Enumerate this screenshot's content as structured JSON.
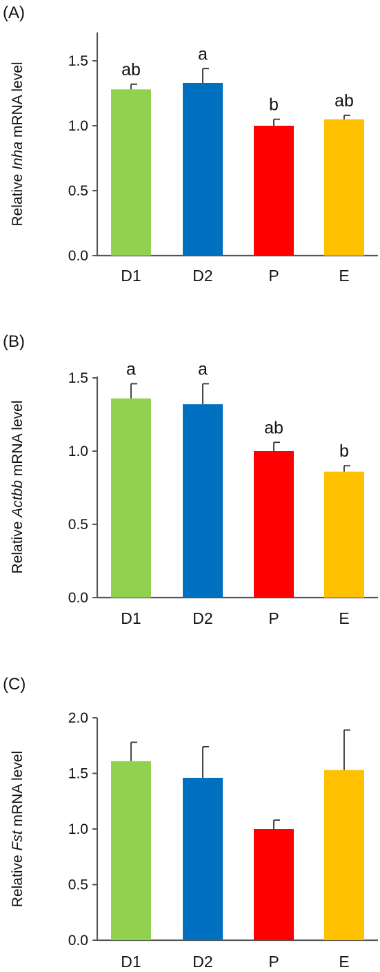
{
  "chart_data": [
    {
      "type": "bar",
      "panel_label": "(A)",
      "ylabel": {
        "prefix": "Relative ",
        "gene": "Inha",
        "suffix": " mRNA level"
      },
      "categories": [
        "D1",
        "D2",
        "P",
        "E"
      ],
      "values": [
        1.28,
        1.33,
        1.0,
        1.05
      ],
      "error": [
        0.04,
        0.11,
        0.05,
        0.03
      ],
      "significance": [
        "ab",
        "a",
        "b",
        "ab"
      ],
      "colors": [
        "#92d050",
        "#0070c0",
        "#ff0000",
        "#ffc000"
      ],
      "ylim": [
        0.0,
        1.7
      ],
      "yticks": [
        "0.0",
        "0.5",
        "1.0",
        "1.5"
      ],
      "ytick_values": [
        0.0,
        0.5,
        1.0,
        1.5
      ]
    },
    {
      "type": "bar",
      "panel_label": "(B)",
      "ylabel": {
        "prefix": "Relative ",
        "gene": "Actbb",
        "suffix": " mRNA level"
      },
      "categories": [
        "D1",
        "D2",
        "P",
        "E"
      ],
      "values": [
        1.36,
        1.32,
        1.0,
        0.86
      ],
      "error": [
        0.1,
        0.14,
        0.06,
        0.04
      ],
      "significance": [
        "a",
        "a",
        "ab",
        "b"
      ],
      "colors": [
        "#92d050",
        "#0070c0",
        "#ff0000",
        "#ffc000"
      ],
      "ylim": [
        0.0,
        1.5
      ],
      "yticks": [
        "0.0",
        "0.5",
        "1.0",
        "1.5"
      ],
      "ytick_values": [
        0.0,
        0.5,
        1.0,
        1.5
      ]
    },
    {
      "type": "bar",
      "panel_label": "(C)",
      "ylabel": {
        "prefix": "Relative ",
        "gene": "Fst",
        "suffix": " mRNA level"
      },
      "categories": [
        "D1",
        "D2",
        "P",
        "E"
      ],
      "values": [
        1.61,
        1.46,
        1.0,
        1.53
      ],
      "error": [
        0.17,
        0.28,
        0.08,
        0.36
      ],
      "significance": [
        "",
        "",
        "",
        ""
      ],
      "colors": [
        "#92d050",
        "#0070c0",
        "#ff0000",
        "#ffc000"
      ],
      "ylim": [
        0.0,
        2.0
      ],
      "yticks": [
        "0.0",
        "0.5",
        "1.0",
        "1.5",
        "2.0"
      ],
      "ytick_values": [
        0.0,
        0.5,
        1.0,
        1.5,
        2.0
      ]
    }
  ]
}
